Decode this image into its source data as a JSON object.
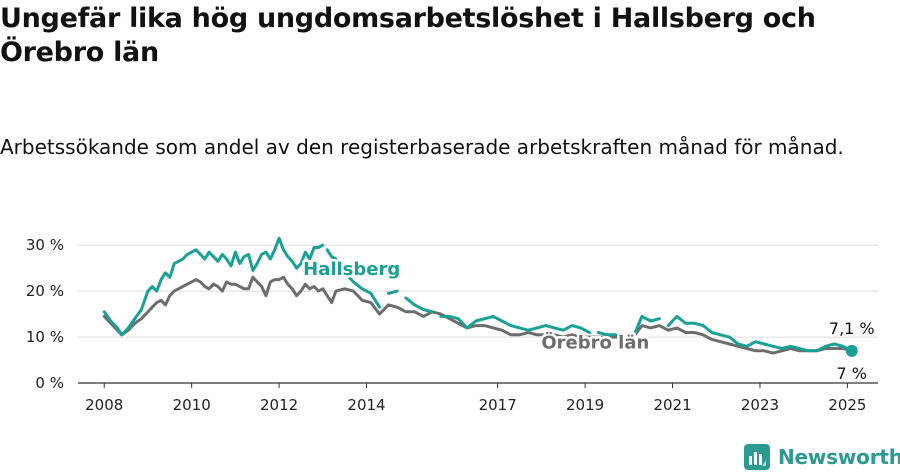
{
  "title": "Ungefär lika hög ungdomsarbetslöshet i Hallsberg och Örebro län",
  "subtitle": "Arbetssökande som andel av den registerbaserade arbetskraften månad för månad.",
  "brand": "Newsworthy",
  "colors": {
    "hallsberg": "#19a196",
    "orebro": "#6d6d6d",
    "grid": "#dddddd",
    "axis": "#333333"
  },
  "chart_data": {
    "type": "line",
    "x_unit": "year",
    "ylim": [
      0,
      32
    ],
    "xlim": [
      2007.4,
      2025.7
    ],
    "yticks": [
      0,
      10,
      20,
      30
    ],
    "ytick_labels": [
      "0 %",
      "10 %",
      "20 %",
      "30 %"
    ],
    "xticks": [
      2008,
      2010,
      2012,
      2014,
      2017,
      2019,
      2021,
      2023,
      2025
    ],
    "xtick_labels": [
      "2008",
      "2010",
      "2012",
      "2014",
      "2017",
      "2019",
      "2021",
      "2023",
      "2025"
    ],
    "grid": true,
    "series": [
      {
        "name": "Hallsberg",
        "end_label": "7 %",
        "x": [
          2008.0,
          2008.15,
          2008.3,
          2008.4,
          2008.55,
          2008.7,
          2008.85,
          2009.0,
          2009.1,
          2009.2,
          2009.3,
          2009.4,
          2009.5,
          2009.6,
          2009.7,
          2009.8,
          2009.9,
          2010.0,
          2010.1,
          2010.2,
          2010.3,
          2010.4,
          2010.5,
          2010.6,
          2010.7,
          2010.8,
          2010.9,
          2011.0,
          2011.1,
          2011.2,
          2011.3,
          2011.4,
          2011.5,
          2011.6,
          2011.7,
          2011.8,
          2011.9,
          2012.0,
          2012.1,
          2012.2,
          2012.3,
          2012.4,
          2012.5,
          2012.6,
          2012.7,
          2012.8,
          2012.9,
          2013.0,
          2013.1,
          2013.2,
          2013.3,
          2013.5,
          2013.7,
          2013.9,
          2014.1,
          2014.3,
          2014.5,
          2014.7,
          2014.9,
          2015.1,
          2015.3,
          2015.5,
          2015.7,
          2015.9,
          2016.1,
          2016.3,
          2016.5,
          2016.7,
          2016.9,
          2017.1,
          2017.3,
          2017.5,
          2017.7,
          2017.9,
          2018.1,
          2018.3,
          2018.5,
          2018.7,
          2018.9,
          2019.1,
          2019.3,
          2019.5,
          2019.7,
          2019.9,
          2020.1,
          2020.3,
          2020.5,
          2020.7,
          2020.9,
          2021.1,
          2021.3,
          2021.5,
          2021.7,
          2021.9,
          2022.1,
          2022.3,
          2022.5,
          2022.7,
          2022.9,
          2023.1,
          2023.3,
          2023.5,
          2023.7,
          2023.9,
          2024.1,
          2024.3,
          2024.5,
          2024.7,
          2024.9,
          2025.1
        ],
        "y": [
          15.5,
          13.5,
          12.0,
          10.5,
          12.0,
          14.0,
          16.0,
          20.0,
          21.0,
          20.0,
          22.5,
          24.0,
          23.0,
          26.0,
          26.5,
          27.0,
          28.0,
          28.5,
          29.0,
          28.0,
          27.0,
          28.5,
          27.5,
          26.5,
          28.0,
          27.0,
          25.5,
          28.5,
          26.0,
          27.5,
          28.0,
          24.5,
          26.0,
          28.0,
          28.5,
          27.0,
          29.0,
          31.5,
          29.0,
          27.5,
          26.5,
          25.0,
          26.0,
          28.5,
          27.0,
          29.5,
          29.5,
          30.0,
          29.0,
          27.5,
          27.0,
          24.0,
          22.0,
          20.5,
          19.5,
          16.5,
          19.5,
          20.0,
          18.5,
          17.0,
          16.0,
          15.5,
          14.5,
          14.5,
          14.0,
          12.0,
          13.5,
          14.0,
          14.5,
          13.5,
          12.5,
          12.0,
          11.5,
          12.0,
          12.5,
          12.0,
          11.5,
          12.5,
          12.0,
          11.0,
          11.0,
          10.5,
          10.5,
          10.0,
          10.0,
          14.5,
          13.5,
          14.0,
          12.5,
          14.5,
          13.0,
          13.0,
          12.5,
          11.0,
          10.5,
          10.0,
          8.5,
          8.0,
          9.0,
          8.5,
          8.0,
          7.5,
          8.0,
          7.5,
          7.0,
          7.0,
          8.0,
          8.5,
          8.0,
          7.0
        ],
        "gaps_after_index": [
          47,
          55,
          57,
          61,
          79,
          83,
          87
        ]
      },
      {
        "name": "Örebro län",
        "end_label": "7,1 %",
        "x": [
          2008.0,
          2008.15,
          2008.3,
          2008.4,
          2008.55,
          2008.7,
          2008.85,
          2009.0,
          2009.1,
          2009.2,
          2009.3,
          2009.4,
          2009.5,
          2009.6,
          2009.7,
          2009.8,
          2009.9,
          2010.0,
          2010.1,
          2010.2,
          2010.3,
          2010.4,
          2010.5,
          2010.6,
          2010.7,
          2010.8,
          2010.9,
          2011.0,
          2011.1,
          2011.2,
          2011.3,
          2011.4,
          2011.5,
          2011.6,
          2011.7,
          2011.8,
          2011.9,
          2012.0,
          2012.1,
          2012.2,
          2012.3,
          2012.4,
          2012.5,
          2012.6,
          2012.7,
          2012.8,
          2012.9,
          2013.0,
          2013.1,
          2013.2,
          2013.3,
          2013.5,
          2013.7,
          2013.9,
          2014.1,
          2014.3,
          2014.5,
          2014.7,
          2014.9,
          2015.1,
          2015.3,
          2015.5,
          2015.7,
          2015.9,
          2016.1,
          2016.3,
          2016.5,
          2016.7,
          2016.9,
          2017.1,
          2017.3,
          2017.5,
          2017.7,
          2017.9,
          2018.1,
          2018.3,
          2018.5,
          2018.7,
          2018.9,
          2019.1,
          2019.3,
          2019.5,
          2019.7,
          2019.9,
          2020.1,
          2020.3,
          2020.5,
          2020.7,
          2020.9,
          2021.1,
          2021.3,
          2021.5,
          2021.7,
          2021.9,
          2022.1,
          2022.3,
          2022.5,
          2022.7,
          2022.9,
          2023.1,
          2023.3,
          2023.5,
          2023.7,
          2023.9,
          2024.1,
          2024.3,
          2024.5,
          2024.7,
          2024.9,
          2025.1
        ],
        "y": [
          14.5,
          13.0,
          11.5,
          10.5,
          11.5,
          13.0,
          14.0,
          15.5,
          16.5,
          17.5,
          18.0,
          17.0,
          19.0,
          20.0,
          20.5,
          21.0,
          21.5,
          22.0,
          22.5,
          22.0,
          21.0,
          20.5,
          21.5,
          21.0,
          20.0,
          22.0,
          21.5,
          21.5,
          21.0,
          20.5,
          20.5,
          23.0,
          22.0,
          21.0,
          19.0,
          22.0,
          22.5,
          22.5,
          23.0,
          21.5,
          20.5,
          19.0,
          20.0,
          21.5,
          20.5,
          21.0,
          20.0,
          20.5,
          19.0,
          17.5,
          20.0,
          20.5,
          20.0,
          18.0,
          17.5,
          15.0,
          17.0,
          16.5,
          15.5,
          15.5,
          14.5,
          15.5,
          15.0,
          14.0,
          13.0,
          12.0,
          12.5,
          12.5,
          12.0,
          11.5,
          10.5,
          10.5,
          11.0,
          10.5,
          10.5,
          10.5,
          10.0,
          10.5,
          10.0,
          10.0,
          10.0,
          10.0,
          10.0,
          10.0,
          10.0,
          12.5,
          12.0,
          12.5,
          11.5,
          12.0,
          11.0,
          11.0,
          10.5,
          9.5,
          9.0,
          8.5,
          8.0,
          7.5,
          7.0,
          7.0,
          6.5,
          7.0,
          7.5,
          7.0,
          7.0,
          7.0,
          7.5,
          7.5,
          7.5,
          7.1
        ]
      }
    ]
  }
}
